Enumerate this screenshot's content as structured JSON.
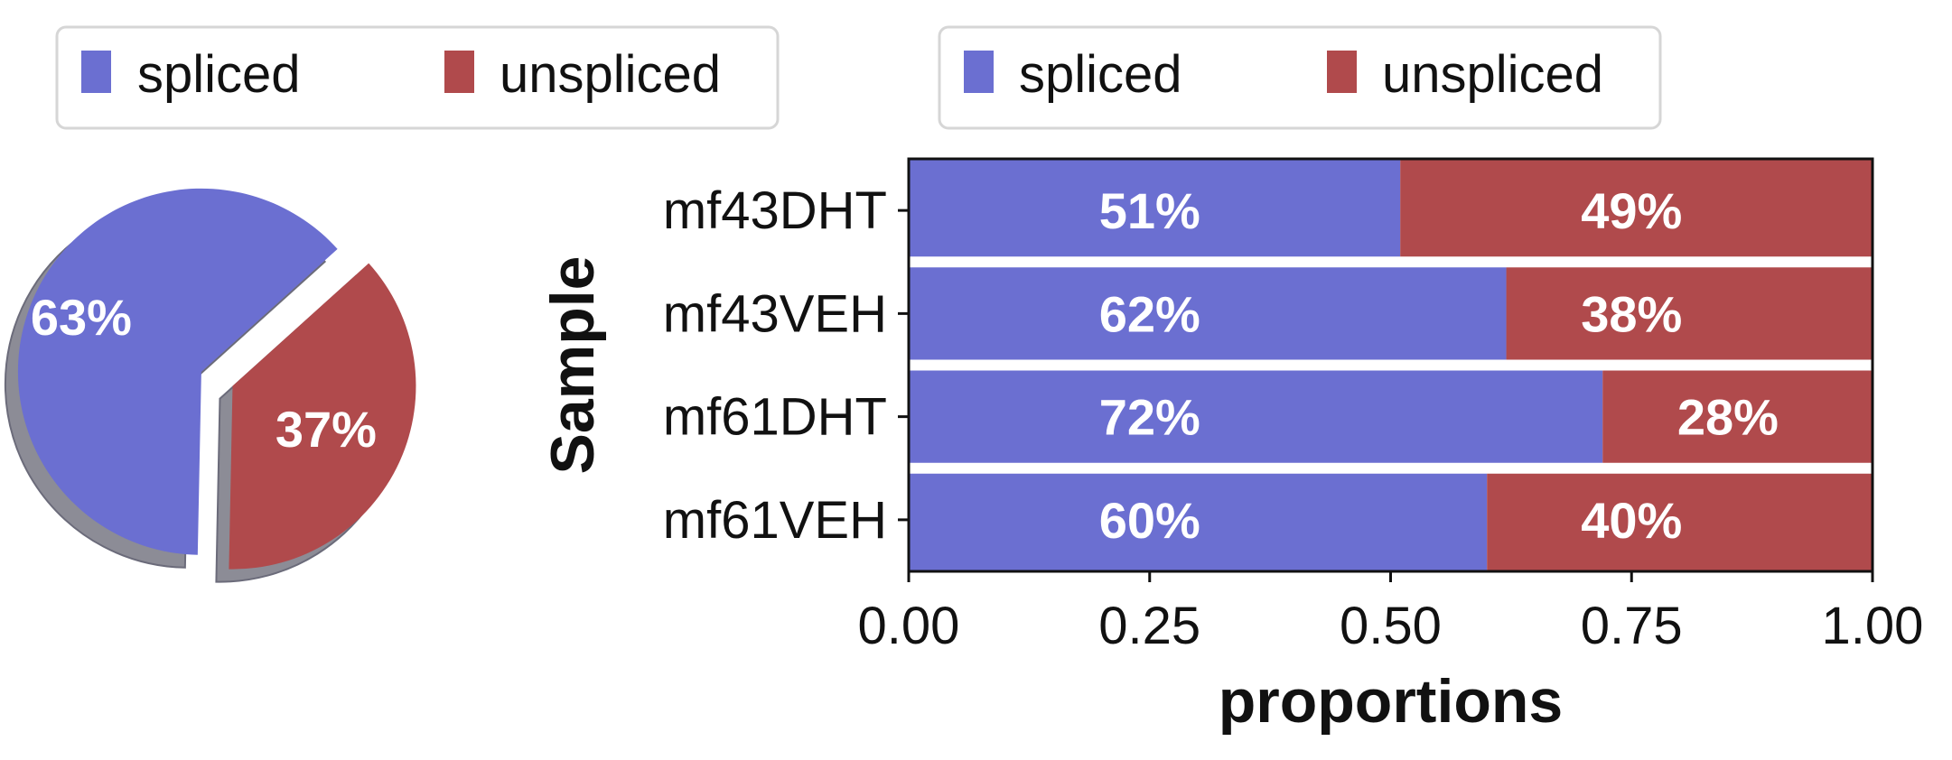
{
  "colors": {
    "spliced": "#6b6fd1",
    "unspliced": "#b04a4c",
    "shadow": "#8c8c96"
  },
  "legends": [
    {
      "items": [
        {
          "label": "spliced",
          "color": "#6b6fd1"
        },
        {
          "label": "unspliced",
          "color": "#b04a4c"
        }
      ]
    },
    {
      "items": [
        {
          "label": "spliced",
          "color": "#6b6fd1"
        },
        {
          "label": "unspliced",
          "color": "#b04a4c"
        }
      ]
    }
  ],
  "chart_data": [
    {
      "type": "pie",
      "categories": [
        "spliced",
        "unspliced"
      ],
      "values": [
        63,
        37
      ],
      "labels": [
        "63%",
        "37%"
      ],
      "exploded": true,
      "shadow": true,
      "legend": "top"
    },
    {
      "type": "bar",
      "orientation": "horizontal",
      "stacked": true,
      "categories": [
        "mf43DHT",
        "mf43VEH",
        "mf61DHT",
        "mf61VEH"
      ],
      "series": [
        {
          "name": "spliced",
          "values": [
            0.51,
            0.62,
            0.72,
            0.6
          ],
          "labels": [
            "51%",
            "62%",
            "72%",
            "60%"
          ]
        },
        {
          "name": "unspliced",
          "values": [
            0.49,
            0.38,
            0.28,
            0.4
          ],
          "labels": [
            "49%",
            "38%",
            "28%",
            "40%"
          ]
        }
      ],
      "xlabel": "proportions",
      "ylabel": "Sample",
      "xlim": [
        0,
        1
      ],
      "xticks": [
        "0.00",
        "0.25",
        "0.50",
        "0.75",
        "1.00"
      ],
      "grid": false,
      "legend": "top"
    }
  ]
}
